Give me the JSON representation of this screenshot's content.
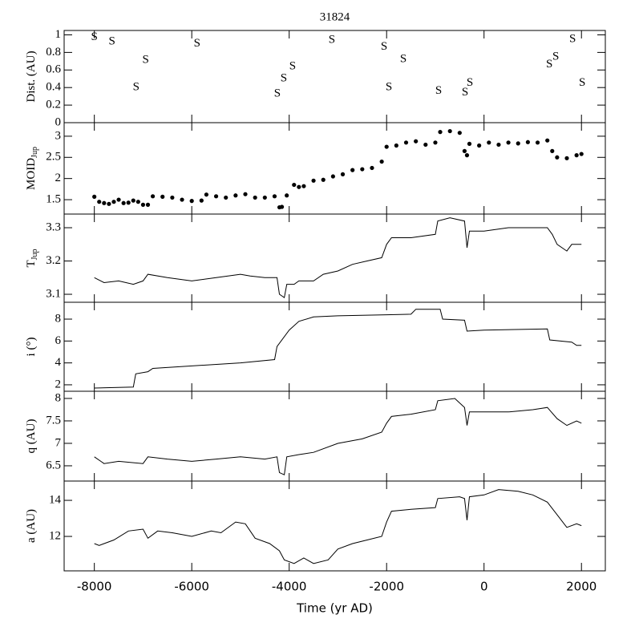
{
  "chart_data": [
    {
      "type": "scatter",
      "title": "31824",
      "ylabel": "Dist. (AU)",
      "marker": "S",
      "x": [
        -8000,
        -7638,
        -6946,
        -7143,
        -5891,
        -4244,
        -4112,
        -3931,
        -3124,
        -2053,
        -1954,
        -1657,
        -933,
        -389,
        -290,
        1341,
        1473,
        1819,
        2016
      ],
      "y": [
        0.97,
        0.92,
        0.71,
        0.4,
        0.9,
        0.33,
        0.5,
        0.64,
        0.94,
        0.86,
        0.4,
        0.72,
        0.36,
        0.34,
        0.45,
        0.66,
        0.75,
        0.95,
        0.45
      ],
      "xlim": [
        -8620,
        2490
      ],
      "xticks": [
        -8000,
        -6000,
        -4000,
        -2000,
        0,
        2000
      ],
      "ylim": [
        0,
        1.05
      ],
      "yticks": [
        0,
        0.2,
        0.4,
        0.6,
        0.8,
        1
      ]
    },
    {
      "type": "dots",
      "ylabel": "MOID",
      "ylabel_sub": "Jup",
      "x": [
        -8000,
        -7900,
        -7800,
        -7700,
        -7600,
        -7500,
        -7400,
        -7300,
        -7200,
        -7100,
        -7000,
        -6900,
        -6800,
        -6600,
        -6400,
        -6200,
        -6000,
        -5800,
        -5700,
        -5500,
        -5300,
        -5100,
        -4900,
        -4700,
        -4500,
        -4300,
        -4200,
        -4150,
        -4050,
        -3900,
        -3800,
        -3700,
        -3500,
        -3300,
        -3100,
        -2900,
        -2700,
        -2500,
        -2300,
        -2100,
        -2000,
        -1800,
        -1600,
        -1400,
        -1200,
        -1000,
        -900,
        -700,
        -500,
        -400,
        -350,
        -300,
        -100,
        100,
        300,
        500,
        700,
        900,
        1100,
        1300,
        1400,
        1500,
        1700,
        1900,
        2000
      ],
      "y": [
        1.57,
        1.45,
        1.42,
        1.4,
        1.45,
        1.5,
        1.42,
        1.43,
        1.48,
        1.45,
        1.38,
        1.38,
        1.58,
        1.57,
        1.55,
        1.5,
        1.47,
        1.48,
        1.62,
        1.58,
        1.55,
        1.6,
        1.63,
        1.55,
        1.55,
        1.58,
        1.32,
        1.33,
        1.6,
        1.85,
        1.8,
        1.82,
        1.95,
        1.97,
        2.05,
        2.1,
        2.2,
        2.22,
        2.25,
        2.4,
        2.75,
        2.78,
        2.85,
        2.88,
        2.8,
        2.85,
        3.1,
        3.12,
        3.08,
        2.65,
        2.55,
        2.82,
        2.78,
        2.85,
        2.8,
        2.85,
        2.83,
        2.86,
        2.85,
        2.9,
        2.65,
        2.5,
        2.48,
        2.55,
        2.58
      ],
      "xlim": [
        -8620,
        2490
      ],
      "xticks": [
        -8000,
        -6000,
        -4000,
        -2000,
        0,
        2000
      ],
      "ylim": [
        1.16,
        3.32
      ],
      "yticks": [
        1.5,
        2,
        2.5,
        3
      ]
    },
    {
      "type": "line",
      "ylabel": "T",
      "ylabel_sub": "Jup",
      "x": [
        -8000,
        -7800,
        -7500,
        -7200,
        -7000,
        -6900,
        -6500,
        -6000,
        -5500,
        -5000,
        -4800,
        -4500,
        -4250,
        -4200,
        -4100,
        -4050,
        -3900,
        -3800,
        -3500,
        -3300,
        -3000,
        -2700,
        -2400,
        -2100,
        -2000,
        -1900,
        -1500,
        -1000,
        -950,
        -700,
        -400,
        -350,
        -300,
        0,
        500,
        1000,
        1300,
        1400,
        1500,
        1700,
        1800,
        2000
      ],
      "y": [
        3.15,
        3.135,
        3.14,
        3.13,
        3.14,
        3.16,
        3.15,
        3.14,
        3.15,
        3.16,
        3.155,
        3.15,
        3.15,
        3.1,
        3.09,
        3.13,
        3.13,
        3.14,
        3.14,
        3.16,
        3.17,
        3.19,
        3.2,
        3.21,
        3.25,
        3.27,
        3.27,
        3.28,
        3.32,
        3.33,
        3.32,
        3.24,
        3.29,
        3.29,
        3.3,
        3.3,
        3.3,
        3.28,
        3.25,
        3.23,
        3.25,
        3.25
      ],
      "xlim": [
        -8620,
        2490
      ],
      "xticks": [
        -8000,
        -6000,
        -4000,
        -2000,
        0,
        2000
      ],
      "ylim": [
        3.076,
        3.341
      ],
      "yticks": [
        3.1,
        3.2,
        3.3
      ]
    },
    {
      "type": "line",
      "ylabel": "i (°)",
      "x": [
        -8000,
        -7200,
        -7150,
        -6900,
        -6800,
        -5000,
        -4300,
        -4250,
        -4000,
        -3800,
        -3500,
        -3000,
        -2000,
        -1500,
        -1400,
        -900,
        -850,
        -400,
        -350,
        0,
        1300,
        1350,
        1800,
        1900,
        2000
      ],
      "y": [
        1.7,
        1.8,
        3.0,
        3.2,
        3.5,
        4.0,
        4.3,
        5.5,
        7.0,
        7.8,
        8.2,
        8.3,
        8.4,
        8.45,
        8.9,
        8.9,
        8.0,
        7.9,
        6.9,
        7.0,
        7.1,
        6.1,
        5.9,
        5.6,
        5.6
      ],
      "xlim": [
        -8620,
        2490
      ],
      "xticks": [
        -8000,
        -6000,
        -4000,
        -2000,
        0,
        2000
      ],
      "ylim": [
        1.41,
        9.54
      ],
      "yticks": [
        2,
        4,
        6,
        8
      ]
    },
    {
      "type": "line",
      "ylabel": "q (AU)",
      "x": [
        -8000,
        -7800,
        -7500,
        -7000,
        -6900,
        -6500,
        -6000,
        -5500,
        -5000,
        -4500,
        -4250,
        -4200,
        -4100,
        -4050,
        -3800,
        -3500,
        -3000,
        -2500,
        -2100,
        -2000,
        -1900,
        -1500,
        -1000,
        -950,
        -600,
        -400,
        -350,
        -300,
        0,
        500,
        1000,
        1300,
        1500,
        1700,
        1900,
        2000
      ],
      "y": [
        6.7,
        6.55,
        6.6,
        6.55,
        6.7,
        6.65,
        6.6,
        6.65,
        6.7,
        6.65,
        6.7,
        6.35,
        6.3,
        6.7,
        6.75,
        6.8,
        7.0,
        7.1,
        7.25,
        7.45,
        7.6,
        7.65,
        7.75,
        7.95,
        8.0,
        7.8,
        7.4,
        7.7,
        7.7,
        7.7,
        7.75,
        7.8,
        7.55,
        7.4,
        7.5,
        7.45
      ],
      "xlim": [
        -8620,
        2490
      ],
      "xticks": [
        -8000,
        -6000,
        -4000,
        -2000,
        0,
        2000
      ],
      "ylim": [
        6.16,
        8.16
      ],
      "yticks": [
        6.5,
        7,
        7.5,
        8
      ]
    },
    {
      "type": "line",
      "ylabel": "a (AU)",
      "xlabel": "Time (yr AD)",
      "x": [
        -8000,
        -7900,
        -7600,
        -7300,
        -7000,
        -6900,
        -6700,
        -6400,
        -6000,
        -5600,
        -5400,
        -5100,
        -4900,
        -4700,
        -4400,
        -4200,
        -4100,
        -3900,
        -3700,
        -3500,
        -3200,
        -3000,
        -2700,
        -2400,
        -2100,
        -2000,
        -1900,
        -1500,
        -1000,
        -950,
        -500,
        -400,
        -350,
        -300,
        0,
        300,
        700,
        1000,
        1300,
        1500,
        1700,
        1900,
        2000
      ],
      "y": [
        11.6,
        11.5,
        11.8,
        12.3,
        12.4,
        11.9,
        12.3,
        12.2,
        12.0,
        12.3,
        12.2,
        12.8,
        12.7,
        11.9,
        11.6,
        11.2,
        10.7,
        10.5,
        10.8,
        10.5,
        10.7,
        11.3,
        11.6,
        11.8,
        12.0,
        12.8,
        13.4,
        13.5,
        13.6,
        14.1,
        14.2,
        14.1,
        12.9,
        14.2,
        14.3,
        14.6,
        14.5,
        14.3,
        13.9,
        13.2,
        12.5,
        12.7,
        12.6
      ],
      "xlim": [
        -8620,
        2490
      ],
      "xticks": [
        -8000,
        -6000,
        -4000,
        -2000,
        0,
        2000
      ],
      "ylim": [
        10.09,
        15.07
      ],
      "yticks": [
        12,
        14
      ]
    }
  ]
}
